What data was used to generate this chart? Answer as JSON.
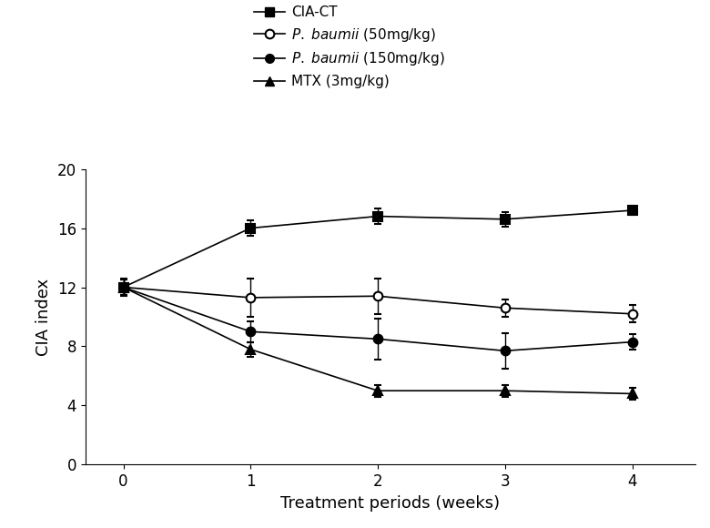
{
  "x": [
    0,
    1,
    2,
    3,
    4
  ],
  "series": [
    {
      "label": "CIA-CT",
      "y": [
        12.0,
        16.0,
        16.8,
        16.6,
        17.2
      ],
      "yerr": [
        0.6,
        0.5,
        0.5,
        0.5,
        0.3
      ],
      "marker": "s",
      "fillstyle": "full",
      "color": "black",
      "linestyle": "-",
      "markersize": 7
    },
    {
      "label": "P. baumii (50mg/kg)",
      "y": [
        12.0,
        11.3,
        11.4,
        10.6,
        10.2
      ],
      "yerr": [
        0.5,
        1.3,
        1.2,
        0.6,
        0.6
      ],
      "marker": "o",
      "fillstyle": "none",
      "color": "black",
      "linestyle": "-",
      "markersize": 7
    },
    {
      "label": "P. baumii (150mg/kg)",
      "y": [
        12.0,
        9.0,
        8.5,
        7.7,
        8.3
      ],
      "yerr": [
        0.5,
        0.7,
        1.4,
        1.2,
        0.5
      ],
      "marker": "o",
      "fillstyle": "full",
      "color": "black",
      "linestyle": "-",
      "markersize": 7
    },
    {
      "label": "MTX (3mg/kg)",
      "y": [
        12.0,
        7.8,
        5.0,
        5.0,
        4.8
      ],
      "yerr": [
        0.5,
        0.5,
        0.4,
        0.4,
        0.4
      ],
      "marker": "^",
      "fillstyle": "full",
      "color": "black",
      "linestyle": "-",
      "markersize": 7
    }
  ],
  "xlabel": "Treatment periods (weeks)",
  "ylabel": "CIA index",
  "xlim": [
    -0.3,
    4.5
  ],
  "ylim": [
    0,
    20
  ],
  "yticks": [
    0,
    4,
    8,
    12,
    16,
    20
  ],
  "xticks": [
    0,
    1,
    2,
    3,
    4
  ],
  "background_color": "#ffffff",
  "fontsize_axis_label": 13,
  "fontsize_tick": 12,
  "fontsize_legend": 11
}
